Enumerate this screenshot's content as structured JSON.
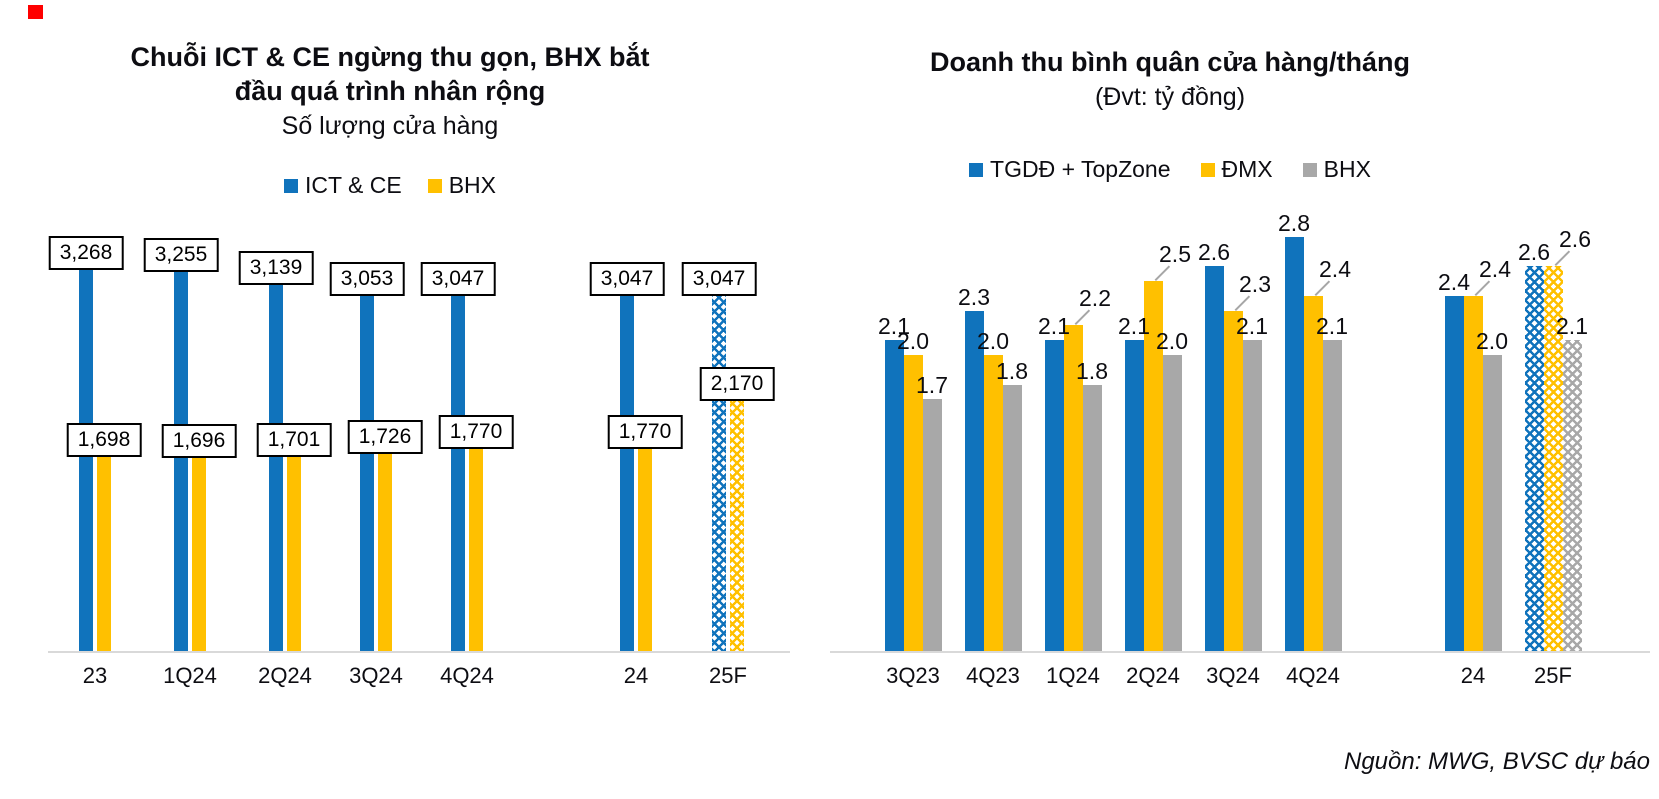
{
  "source_note": "Nguồn: MWG, BVSC dự báo",
  "chart_data": [
    {
      "type": "bar",
      "title": "Chuỗi ICT & CE ngừng thu gọn, BHX bắt đầu quá trình nhân rộng",
      "title_lines": [
        "Chuỗi ICT & CE ngừng thu gọn, BHX bắt",
        "đầu quá trình nhân rộng"
      ],
      "subtitle": "Số lượng cửa hàng",
      "categories": [
        "23",
        "1Q24",
        "2Q24",
        "3Q24",
        "4Q24",
        "24",
        "25F"
      ],
      "series": [
        {
          "name": "ICT & CE",
          "color": "#1073bc",
          "values": [
            3268,
            3255,
            3139,
            3053,
            3047,
            3047,
            3047
          ]
        },
        {
          "name": "BHX",
          "color": "#ffc000",
          "values": [
            1698,
            1696,
            1701,
            1726,
            1770,
            1770,
            2170
          ]
        }
      ],
      "data_label_style": "boxed",
      "forecast_categories": [
        "25F"
      ],
      "gap_before_category": "24",
      "legend_position": "top",
      "ylim": [
        0,
        3450
      ],
      "grid": false
    },
    {
      "type": "bar",
      "title": "Doanh thu bình quân cửa hàng/tháng",
      "subtitle": "(Đvt: tỷ đồng)",
      "categories": [
        "3Q23",
        "4Q23",
        "1Q24",
        "2Q24",
        "3Q24",
        "4Q24",
        "24",
        "25F"
      ],
      "series": [
        {
          "name": "TGDĐ + TopZone",
          "color": "#1073bc",
          "values": [
            2.1,
            2.3,
            2.1,
            2.1,
            2.6,
            2.8,
            2.4,
            2.6
          ]
        },
        {
          "name": "ĐMX",
          "color": "#ffc000",
          "values": [
            2.0,
            2.0,
            2.2,
            2.5,
            2.3,
            2.4,
            2.4,
            2.6
          ],
          "callout_labels_from": "1Q24"
        },
        {
          "name": "BHX",
          "color": "#a8a8a8",
          "values": [
            1.7,
            1.8,
            1.8,
            2.0,
            2.1,
            2.1,
            2.0,
            2.1
          ]
        }
      ],
      "data_label_style": "plain",
      "forecast_categories": [
        "25F"
      ],
      "gap_before_category": "24",
      "legend_position": "top",
      "ylim": [
        0,
        2.9
      ],
      "grid": false
    }
  ]
}
